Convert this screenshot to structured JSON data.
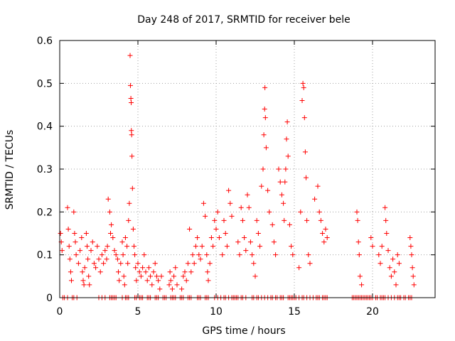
{
  "chart_data": {
    "type": "scatter",
    "title": "Day 248 of 2017, SRMTID for receiver bele",
    "xlabel": "GPS time / hours",
    "ylabel": "SRMTID / TECUs",
    "xlim": [
      0,
      24
    ],
    "ylim": [
      0,
      0.6
    ],
    "grid": true,
    "marker": "+",
    "color": "#ff0000",
    "x_ticks": [
      "0",
      "5",
      "10",
      "15",
      "20"
    ],
    "x_tick_values": [
      0,
      5,
      10,
      15,
      20
    ],
    "y_ticks": [
      "0",
      "0.1",
      "0.2",
      "0.3",
      "0.4",
      "0.5",
      "0.6"
    ],
    "y_tick_values": [
      0,
      0.1,
      0.2,
      0.3,
      0.4,
      0.5,
      0.6
    ],
    "series": [
      {
        "name": "SRMTID",
        "points": [
          [
            0.05,
            0.15
          ],
          [
            0.1,
            0.13
          ],
          [
            0.15,
            0.11
          ],
          [
            0.5,
            0.21
          ],
          [
            0.55,
            0.16
          ],
          [
            0.6,
            0.12
          ],
          [
            0.65,
            0.09
          ],
          [
            0.7,
            0.06
          ],
          [
            0.75,
            0.04
          ],
          [
            0.9,
            0.2
          ],
          [
            0.95,
            0.15
          ],
          [
            1.0,
            0.13
          ],
          [
            1.05,
            0.1
          ],
          [
            1.2,
            0.08
          ],
          [
            1.3,
            0.11
          ],
          [
            1.4,
            0.14
          ],
          [
            1.45,
            0.06
          ],
          [
            1.5,
            0.04
          ],
          [
            1.55,
            0.03
          ],
          [
            1.6,
            0.07
          ],
          [
            1.7,
            0.15
          ],
          [
            1.75,
            0.12
          ],
          [
            1.8,
            0.09
          ],
          [
            1.85,
            0.05
          ],
          [
            1.9,
            0.03
          ],
          [
            2.0,
            0.11
          ],
          [
            2.1,
            0.13
          ],
          [
            2.2,
            0.08
          ],
          [
            2.3,
            0.07
          ],
          [
            2.4,
            0.12
          ],
          [
            2.5,
            0.09
          ],
          [
            2.6,
            0.06
          ],
          [
            2.7,
            0.1
          ],
          [
            2.8,
            0.08
          ],
          [
            2.9,
            0.11
          ],
          [
            3.0,
            0.09
          ],
          [
            3.05,
            0.12
          ],
          [
            3.1,
            0.23
          ],
          [
            3.2,
            0.2
          ],
          [
            3.25,
            0.15
          ],
          [
            3.3,
            0.17
          ],
          [
            3.4,
            0.14
          ],
          [
            3.5,
            0.11
          ],
          [
            3.6,
            0.1
          ],
          [
            3.7,
            0.09
          ],
          [
            3.75,
            0.06
          ],
          [
            3.8,
            0.04
          ],
          [
            3.9,
            0.08
          ],
          [
            4.0,
            0.13
          ],
          [
            4.05,
            0.1
          ],
          [
            4.1,
            0.05
          ],
          [
            4.15,
            0.03
          ],
          [
            4.2,
            0.14
          ],
          [
            4.3,
            0.12
          ],
          [
            4.35,
            0.08
          ],
          [
            4.4,
            0.18
          ],
          [
            4.45,
            0.22
          ],
          [
            4.5,
            0.565
          ],
          [
            4.52,
            0.495
          ],
          [
            4.55,
            0.465
          ],
          [
            4.57,
            0.455
          ],
          [
            4.58,
            0.39
          ],
          [
            4.6,
            0.38
          ],
          [
            4.62,
            0.33
          ],
          [
            4.65,
            0.255
          ],
          [
            4.7,
            0.16
          ],
          [
            4.75,
            0.12
          ],
          [
            4.8,
            0.1
          ],
          [
            4.85,
            0.07
          ],
          [
            4.9,
            0.04
          ],
          [
            5.0,
            0.08
          ],
          [
            5.1,
            0.06
          ],
          [
            5.2,
            0.05
          ],
          [
            5.3,
            0.07
          ],
          [
            5.4,
            0.1
          ],
          [
            5.5,
            0.06
          ],
          [
            5.6,
            0.04
          ],
          [
            5.7,
            0.07
          ],
          [
            5.8,
            0.05
          ],
          [
            5.9,
            0.03
          ],
          [
            6.0,
            0.06
          ],
          [
            6.1,
            0.08
          ],
          [
            6.2,
            0.05
          ],
          [
            6.3,
            0.04
          ],
          [
            6.4,
            0.02
          ],
          [
            6.5,
            0.05
          ],
          [
            7.0,
            0.03
          ],
          [
            7.05,
            0.06
          ],
          [
            7.1,
            0.04
          ],
          [
            7.2,
            0.02
          ],
          [
            7.3,
            0.05
          ],
          [
            7.4,
            0.07
          ],
          [
            7.5,
            0.03
          ],
          [
            7.8,
            0.02
          ],
          [
            7.9,
            0.05
          ],
          [
            8.0,
            0.06
          ],
          [
            8.1,
            0.04
          ],
          [
            8.2,
            0.08
          ],
          [
            8.3,
            0.16
          ],
          [
            8.4,
            0.06
          ],
          [
            8.5,
            0.1
          ],
          [
            8.6,
            0.08
          ],
          [
            8.7,
            0.12
          ],
          [
            8.8,
            0.14
          ],
          [
            8.9,
            0.1
          ],
          [
            9.0,
            0.09
          ],
          [
            9.1,
            0.12
          ],
          [
            9.2,
            0.22
          ],
          [
            9.3,
            0.19
          ],
          [
            9.4,
            0.1
          ],
          [
            9.45,
            0.06
          ],
          [
            9.5,
            0.04
          ],
          [
            9.6,
            0.08
          ],
          [
            9.7,
            0.14
          ],
          [
            9.8,
            0.12
          ],
          [
            9.9,
            0.18
          ],
          [
            10.0,
            0.16
          ],
          [
            10.1,
            0.2
          ],
          [
            10.2,
            0.14
          ],
          [
            10.4,
            0.1
          ],
          [
            10.5,
            0.18
          ],
          [
            10.6,
            0.15
          ],
          [
            10.7,
            0.12
          ],
          [
            10.8,
            0.25
          ],
          [
            10.9,
            0.22
          ],
          [
            11.0,
            0.19
          ],
          [
            11.4,
            0.13
          ],
          [
            11.5,
            0.1
          ],
          [
            11.6,
            0.21
          ],
          [
            11.7,
            0.18
          ],
          [
            11.8,
            0.14
          ],
          [
            11.9,
            0.11
          ],
          [
            12.0,
            0.24
          ],
          [
            12.1,
            0.21
          ],
          [
            12.2,
            0.13
          ],
          [
            12.3,
            0.1
          ],
          [
            12.4,
            0.08
          ],
          [
            12.5,
            0.05
          ],
          [
            12.6,
            0.18
          ],
          [
            12.7,
            0.15
          ],
          [
            12.8,
            0.12
          ],
          [
            12.9,
            0.26
          ],
          [
            13.0,
            0.3
          ],
          [
            13.05,
            0.38
          ],
          [
            13.1,
            0.44
          ],
          [
            13.12,
            0.49
          ],
          [
            13.15,
            0.42
          ],
          [
            13.2,
            0.35
          ],
          [
            13.3,
            0.25
          ],
          [
            13.4,
            0.2
          ],
          [
            13.6,
            0.17
          ],
          [
            13.7,
            0.13
          ],
          [
            13.8,
            0.1
          ],
          [
            14.0,
            0.3
          ],
          [
            14.1,
            0.27
          ],
          [
            14.2,
            0.24
          ],
          [
            14.3,
            0.22
          ],
          [
            14.35,
            0.18
          ],
          [
            14.4,
            0.27
          ],
          [
            14.45,
            0.3
          ],
          [
            14.5,
            0.37
          ],
          [
            14.55,
            0.41
          ],
          [
            14.6,
            0.33
          ],
          [
            14.7,
            0.17
          ],
          [
            14.8,
            0.12
          ],
          [
            14.9,
            0.1
          ],
          [
            15.3,
            0.07
          ],
          [
            15.4,
            0.2
          ],
          [
            15.5,
            0.46
          ],
          [
            15.55,
            0.5
          ],
          [
            15.6,
            0.49
          ],
          [
            15.65,
            0.42
          ],
          [
            15.7,
            0.34
          ],
          [
            15.75,
            0.28
          ],
          [
            15.8,
            0.18
          ],
          [
            15.9,
            0.1
          ],
          [
            16.0,
            0.08
          ],
          [
            16.3,
            0.23
          ],
          [
            16.5,
            0.26
          ],
          [
            16.6,
            0.2
          ],
          [
            16.7,
            0.18
          ],
          [
            16.8,
            0.15
          ],
          [
            16.9,
            0.13
          ],
          [
            17.0,
            0.16
          ],
          [
            17.1,
            0.14
          ],
          [
            19.0,
            0.2
          ],
          [
            19.05,
            0.18
          ],
          [
            19.1,
            0.13
          ],
          [
            19.15,
            0.1
          ],
          [
            19.2,
            0.05
          ],
          [
            19.3,
            0.03
          ],
          [
            19.9,
            0.14
          ],
          [
            20.0,
            0.12
          ],
          [
            20.4,
            0.1
          ],
          [
            20.5,
            0.08
          ],
          [
            20.6,
            0.12
          ],
          [
            20.8,
            0.21
          ],
          [
            20.85,
            0.18
          ],
          [
            20.9,
            0.15
          ],
          [
            21.0,
            0.11
          ],
          [
            21.1,
            0.07
          ],
          [
            21.2,
            0.05
          ],
          [
            21.3,
            0.09
          ],
          [
            21.4,
            0.06
          ],
          [
            21.5,
            0.03
          ],
          [
            21.6,
            0.1
          ],
          [
            21.7,
            0.08
          ],
          [
            22.4,
            0.14
          ],
          [
            22.45,
            0.12
          ],
          [
            22.5,
            0.1
          ],
          [
            22.55,
            0.07
          ],
          [
            22.6,
            0.05
          ],
          [
            22.65,
            0.03
          ]
        ],
        "zero_points_x": [
          0.2,
          0.3,
          0.5,
          0.8,
          0.9,
          1.1,
          2.5,
          2.7,
          2.9,
          3.2,
          3.3,
          3.4,
          3.5,
          3.6,
          4.0,
          4.2,
          4.3,
          4.4,
          4.8,
          4.9,
          5.1,
          5.2,
          5.3,
          5.6,
          5.7,
          5.8,
          6.1,
          6.2,
          6.3,
          6.6,
          6.7,
          6.8,
          7.1,
          7.2,
          7.3,
          7.4,
          7.7,
          7.8,
          7.9,
          8.2,
          8.3,
          8.4,
          8.8,
          8.9,
          9.0,
          9.3,
          9.4,
          9.5,
          9.9,
          10.1,
          10.3,
          10.5,
          10.6,
          10.8,
          11.0,
          11.1,
          11.2,
          11.3,
          11.4,
          11.6,
          11.7,
          11.9,
          12.3,
          12.4,
          12.6,
          12.7,
          12.9,
          13.1,
          13.3,
          13.5,
          13.6,
          13.8,
          13.9,
          14.1,
          14.2,
          14.3,
          14.6,
          14.7,
          14.8,
          14.9,
          15.0,
          15.1,
          15.3,
          15.5,
          15.6,
          15.8,
          16.0,
          16.2,
          16.4,
          16.5,
          16.6,
          16.8,
          16.9,
          17.0,
          17.1,
          18.7,
          18.8,
          18.9,
          19.0,
          19.1,
          19.2,
          19.3,
          19.4,
          19.5,
          19.6,
          19.7,
          19.8,
          19.9,
          20.0,
          20.2,
          20.3,
          20.5,
          20.6,
          20.7,
          20.8,
          21.0,
          21.2,
          21.4,
          21.6,
          21.7,
          21.8,
          22.0,
          22.1,
          22.3,
          22.4,
          22.5
        ]
      }
    ]
  }
}
